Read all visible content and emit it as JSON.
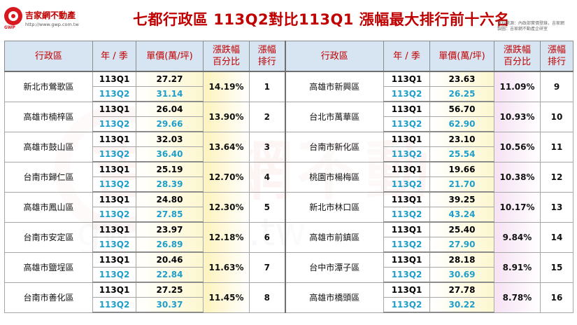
{
  "logo": {
    "name": "吉家網不動產",
    "tag": "GWP",
    "url": "http://www.gwp.com.tw"
  },
  "title": "七都行政區 113Q2對比113Q1 漲幅最大排行前十六名",
  "source_lines": [
    "資料來源：內政部實價登錄，吉家網",
    "製圖：吉家網不動產企研室"
  ],
  "watermark": {
    "text": "吉家網不動產",
    "url": "gwp.com.tw"
  },
  "headers": {
    "district": "行政區",
    "period": "年 / 季",
    "price": "單價(萬/坪)",
    "change_line1": "漲跌幅",
    "change_line2": "百分比",
    "rank_line1": "漲幅",
    "rank_line2": "排行"
  },
  "left_rows": [
    {
      "district": "新北市鶯歌區",
      "q1_label": "113Q1",
      "q1_price": "27.27",
      "q2_label": "113Q2",
      "q2_price": "31.14",
      "change": "14.19%",
      "rank": "1"
    },
    {
      "district": "高雄市楠梓區",
      "q1_label": "113Q1",
      "q1_price": "26.04",
      "q2_label": "113Q2",
      "q2_price": "29.66",
      "change": "13.90%",
      "rank": "2"
    },
    {
      "district": "高雄市鼓山區",
      "q1_label": "113Q1",
      "q1_price": "32.03",
      "q2_label": "113Q2",
      "q2_price": "36.40",
      "change": "13.64%",
      "rank": "3"
    },
    {
      "district": "台南市歸仁區",
      "q1_label": "113Q1",
      "q1_price": "25.19",
      "q2_label": "113Q2",
      "q2_price": "28.39",
      "change": "12.70%",
      "rank": "4"
    },
    {
      "district": "高雄市鳳山區",
      "q1_label": "113Q1",
      "q1_price": "24.80",
      "q2_label": "113Q2",
      "q2_price": "27.85",
      "change": "12.30%",
      "rank": "5"
    },
    {
      "district": "台南市安定區",
      "q1_label": "113Q1",
      "q1_price": "23.97",
      "q2_label": "113Q2",
      "q2_price": "26.89",
      "change": "12.18%",
      "rank": "6"
    },
    {
      "district": "高雄市鹽埕區",
      "q1_label": "113Q1",
      "q1_price": "20.46",
      "q2_label": "113Q2",
      "q2_price": "22.84",
      "change": "11.63%",
      "rank": "7"
    },
    {
      "district": "台南市善化區",
      "q1_label": "113Q1",
      "q1_price": "27.25",
      "q2_label": "113Q2",
      "q2_price": "30.37",
      "change": "11.45%",
      "rank": "8"
    }
  ],
  "right_rows": [
    {
      "district": "高雄市新興區",
      "q1_label": "113Q1",
      "q1_price": "23.63",
      "q2_label": "113Q2",
      "q2_price": "26.25",
      "change": "11.09%",
      "rank": "9"
    },
    {
      "district": "台北市萬華區",
      "q1_label": "113Q1",
      "q1_price": "56.70",
      "q2_label": "113Q2",
      "q2_price": "62.90",
      "change": "10.93%",
      "rank": "10"
    },
    {
      "district": "台南市新化區",
      "q1_label": "113Q1",
      "q1_price": "23.10",
      "q2_label": "113Q2",
      "q2_price": "25.54",
      "change": "10.56%",
      "rank": "11"
    },
    {
      "district": "桃園市楊梅區",
      "q1_label": "113Q1",
      "q1_price": "19.66",
      "q2_label": "113Q2",
      "q2_price": "21.70",
      "change": "10.38%",
      "rank": "12"
    },
    {
      "district": "新北市林口區",
      "q1_label": "113Q1",
      "q1_price": "39.25",
      "q2_label": "113Q2",
      "q2_price": "43.24",
      "change": "10.17%",
      "rank": "13"
    },
    {
      "district": "高雄市前鎮區",
      "q1_label": "113Q1",
      "q1_price": "25.40",
      "q2_label": "113Q2",
      "q2_price": "27.90",
      "change": "9.84%",
      "rank": "14"
    },
    {
      "district": "台中市潭子區",
      "q1_label": "113Q1",
      "q1_price": "28.18",
      "q2_label": "113Q2",
      "q2_price": "30.69",
      "change": "8.91%",
      "rank": "15"
    },
    {
      "district": "高雄市橋頭區",
      "q1_label": "113Q1",
      "q1_price": "27.78",
      "q2_label": "113Q2",
      "q2_price": "30.22",
      "change": "8.78%",
      "rank": "16"
    }
  ],
  "colors": {
    "title_red": "#c00000",
    "q2_blue": "#1e9ec9",
    "header_bg": "#d7e4f1",
    "left_pct_yellow": "#fdf3bd",
    "right_pct_pink": "#f6e2f4"
  }
}
